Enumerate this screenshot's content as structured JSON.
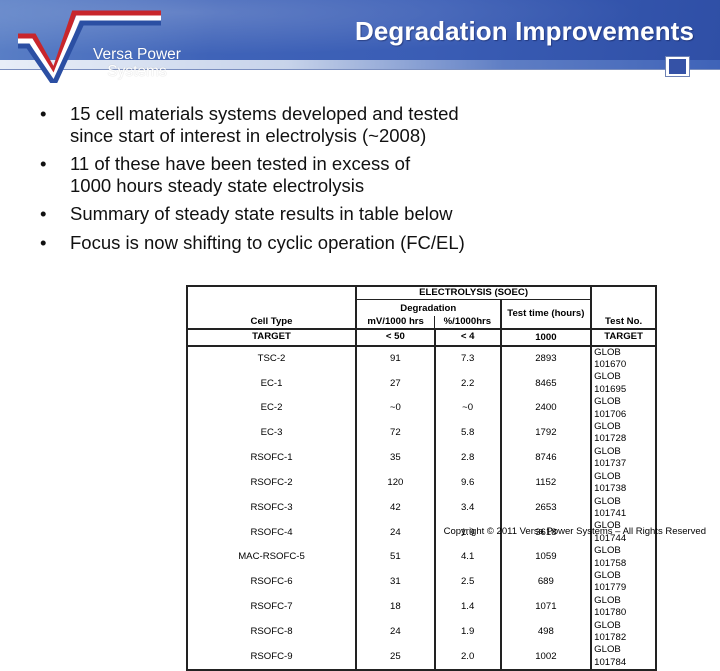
{
  "header": {
    "title": "Degradation Improvements",
    "logo": {
      "line1": "Versa Power",
      "line2": "Systems",
      "colors": {
        "red": "#c8262c",
        "white": "#ffffff",
        "blue": "#2b4fa3"
      }
    },
    "colors": {
      "band": "#3f63b8",
      "accent_box": "#3552a6"
    }
  },
  "bullets": [
    {
      "icon": "bullet-dot",
      "line1": "15 cell materials systems developed and tested",
      "line2": "since start of interest in electrolysis (~2008)"
    },
    {
      "icon": "bullet-dot",
      "line1": "11 of these have been tested in excess of",
      "line2": "1000 hours steady state electrolysis"
    },
    {
      "icon": "bullet-dot",
      "line1": "Summary of steady state results in table below",
      "line2": ""
    },
    {
      "icon": "bullet-dot",
      "line1": "Focus is now shifting to cyclic operation (FC/EL)",
      "line2": ""
    }
  ],
  "table": {
    "group_header": "ELECTROLYSIS (SOEC)",
    "degradation_header": "Degradation",
    "columns": {
      "cell_type": "Cell Type",
      "mv": "mV/1000 hrs",
      "pct": "%/1000hrs",
      "test_time": "Test time (hours)",
      "test_no": "Test No."
    },
    "target": {
      "cell_type": "TARGET",
      "mv": "< 50",
      "pct": "< 4",
      "test_time": "1000",
      "test_no": "TARGET"
    },
    "rows": [
      {
        "cell_type": "TSC-2",
        "mv": "91",
        "pct": "7.3",
        "test_time": "2893",
        "test_no": "GLOB 101670"
      },
      {
        "cell_type": "EC-1",
        "mv": "27",
        "pct": "2.2",
        "test_time": "8465",
        "test_no": "GLOB 101695"
      },
      {
        "cell_type": "EC-2",
        "mv": "~0",
        "pct": "~0",
        "test_time": "2400",
        "test_no": "GLOB 101706"
      },
      {
        "cell_type": "EC-3",
        "mv": "72",
        "pct": "5.8",
        "test_time": "1792",
        "test_no": "GLOB 101728"
      },
      {
        "cell_type": "RSOFC-1",
        "mv": "35",
        "pct": "2.8",
        "test_time": "8746",
        "test_no": "GLOB 101737"
      },
      {
        "cell_type": "RSOFC-2",
        "mv": "120",
        "pct": "9.6",
        "test_time": "1152",
        "test_no": "GLOB 101738"
      },
      {
        "cell_type": "RSOFC-3",
        "mv": "42",
        "pct": "3.4",
        "test_time": "2653",
        "test_no": "GLOB 101741"
      },
      {
        "cell_type": "RSOFC-4",
        "mv": "24",
        "pct": "1.9",
        "test_time": "3618",
        "test_no": "GLOB 101744"
      },
      {
        "cell_type": "MAC-RSOFC-5",
        "mv": "51",
        "pct": "4.1",
        "test_time": "1059",
        "test_no": "GLOB 101758"
      },
      {
        "cell_type": "RSOFC-6",
        "mv": "31",
        "pct": "2.5",
        "test_time": "689",
        "test_no": "GLOB 101779"
      },
      {
        "cell_type": "RSOFC-7",
        "mv": "18",
        "pct": "1.4",
        "test_time": "1071",
        "test_no": "GLOB 101780"
      },
      {
        "cell_type": "RSOFC-8",
        "mv": "24",
        "pct": "1.9",
        "test_time": "498",
        "test_no": "GLOB 101782"
      },
      {
        "cell_type": "RSOFC-9",
        "mv": "25",
        "pct": "2.0",
        "test_time": "1002",
        "test_no": "GLOB 101784"
      }
    ]
  },
  "footer": {
    "copyright": "Copyright © 2011 Versa Power Systems – All Rights Reserved"
  }
}
